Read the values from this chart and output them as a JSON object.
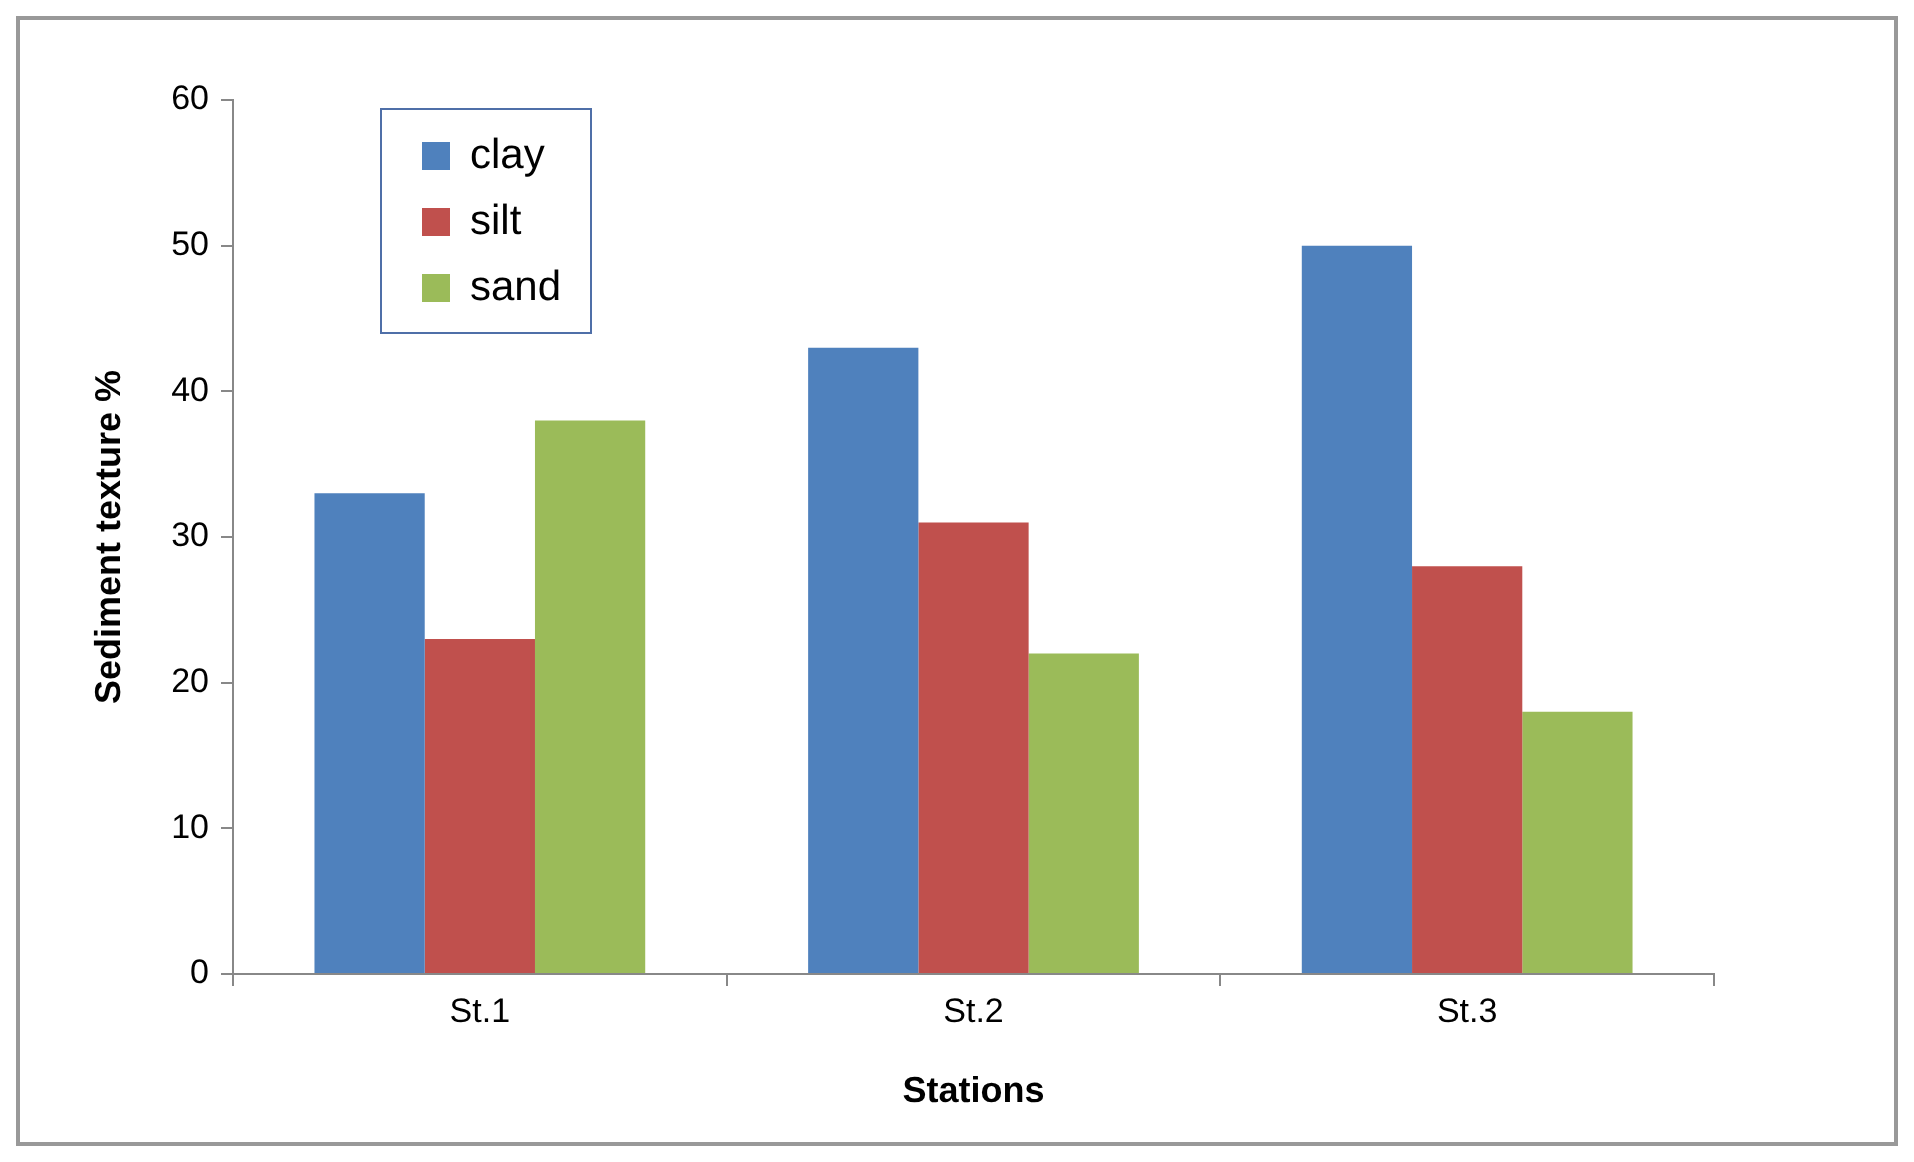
{
  "chart_data": {
    "type": "bar",
    "xlabel": "Stations",
    "ylabel": "Sediment texture %",
    "categories": [
      "St.1",
      "St.2",
      "St.3"
    ],
    "series": [
      {
        "name": "clay",
        "color": "#4f81bd",
        "values": [
          33,
          43,
          50
        ]
      },
      {
        "name": "silt",
        "color": "#c0504d",
        "values": [
          23,
          31,
          28
        ]
      },
      {
        "name": "sand",
        "color": "#9bbb59",
        "values": [
          38,
          22,
          18
        ]
      }
    ],
    "ylim": [
      0,
      60
    ],
    "yticks": [
      0,
      10,
      20,
      30,
      40,
      50,
      60
    ],
    "grid": false,
    "legend": "top left"
  }
}
